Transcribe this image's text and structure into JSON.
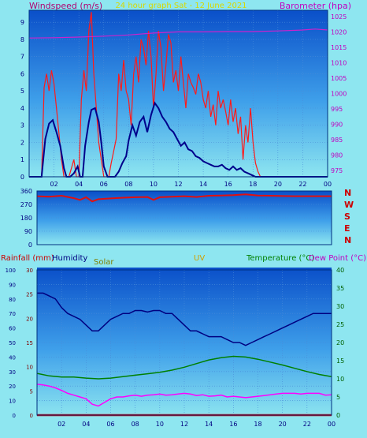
{
  "header": {
    "title": "24 hour graph Sat - 12 June 2021",
    "windspeed_label": "Windspeed (m/s)",
    "barometer_label": "Barometer (hpa)"
  },
  "bottom_header": {
    "rainfall_label": "Rainfall (mm)",
    "humidity_label": "Humidity",
    "solar_label": "Solar",
    "uv_label": "UV",
    "temperature_label": "Temperature (°C)",
    "dewpoint_label": "Dew Point (°C)"
  },
  "colors": {
    "background": "#8ee6f0",
    "gust": "#ff1a1a",
    "avg_wind": "#00008b",
    "barometer": "#cc22cc",
    "direction": "#e01010",
    "humidity": "#000080",
    "temperature": "#008000",
    "dewpoint": "#ff00ff",
    "solar": "#ffd700",
    "rain": "#cc0000"
  },
  "chart_data": [
    {
      "type": "line",
      "name": "wind-barometer",
      "x_ticks": [
        "02",
        "04",
        "06",
        "08",
        "10",
        "12",
        "14",
        "16",
        "18",
        "20",
        "22",
        "00"
      ],
      "y_left_ticks": [
        0,
        1,
        2,
        3,
        4,
        5,
        6,
        7,
        8,
        9
      ],
      "y_left_lim": [
        0,
        9.7
      ],
      "y_right_ticks": [
        975,
        980,
        985,
        990,
        995,
        1000,
        1005,
        1010,
        1015,
        1020,
        1025
      ],
      "y_right_lim": [
        973,
        1027
      ],
      "x_lim": [
        0,
        24
      ],
      "grid": true,
      "series": [
        {
          "role": "gust",
          "x": [
            0,
            0.3,
            0.6,
            1,
            1.2,
            1.4,
            1.6,
            1.8,
            2.0,
            2.2,
            2.4,
            2.6,
            2.8,
            3.0,
            3.1,
            3.2,
            3.4,
            3.6,
            3.8,
            4.0,
            4.2,
            4.4,
            4.6,
            4.8,
            5.0,
            5.2,
            5.4,
            5.6,
            5.8,
            6.0,
            6.2,
            6.4,
            6.6,
            6.8,
            7.0,
            7.2,
            7.4,
            7.6,
            7.8,
            8.0,
            8.2,
            8.4,
            8.6,
            8.8,
            9.0,
            9.2,
            9.4,
            9.6,
            9.8,
            10.0,
            10.2,
            10.4,
            10.6,
            10.8,
            11.0,
            11.2,
            11.4,
            11.6,
            11.8,
            12.0,
            12.2,
            12.4,
            12.6,
            12.8,
            13.0,
            13.2,
            13.4,
            13.6,
            13.8,
            14.0,
            14.2,
            14.4,
            14.6,
            14.8,
            15.0,
            15.2,
            15.4,
            15.6,
            15.8,
            16.0,
            16.2,
            16.4,
            16.6,
            16.8,
            17.0,
            17.2,
            17.4,
            17.6,
            17.8,
            18.0,
            18.2,
            18.4,
            18.6,
            19,
            20,
            21,
            22,
            23,
            24
          ],
          "values": [
            0,
            0,
            0,
            0,
            5.2,
            6.0,
            5.0,
            6.2,
            5.4,
            4.0,
            2.5,
            1.0,
            0,
            0,
            0,
            0,
            0.5,
            1.0,
            0,
            0,
            4.5,
            6.2,
            5.0,
            8.5,
            9.6,
            6.0,
            4.0,
            2.0,
            1.0,
            0,
            0,
            0,
            0.8,
            1.5,
            2.2,
            6.0,
            5.0,
            6.8,
            5.0,
            4.5,
            3.0,
            6.0,
            7.0,
            5.5,
            8.0,
            7.5,
            6.5,
            8.5,
            7.0,
            4.0,
            6.0,
            8.5,
            7.5,
            5.0,
            6.5,
            8.3,
            7.8,
            5.5,
            6.2,
            5.0,
            7.0,
            5.5,
            4.0,
            6.0,
            5.5,
            5.2,
            4.8,
            6.0,
            5.5,
            4.5,
            4.0,
            5.0,
            3.5,
            4.2,
            3.0,
            5.0,
            4.0,
            4.5,
            3.8,
            3.0,
            4.5,
            3.2,
            4.0,
            2.5,
            3.5,
            1.0,
            3.0,
            2.0,
            4.0,
            2.0,
            0.8,
            0.3,
            0,
            0,
            0,
            0,
            0,
            0,
            0
          ]
        },
        {
          "role": "average",
          "x": [
            0,
            0.8,
            1,
            1.3,
            1.6,
            1.9,
            2.2,
            2.5,
            2.8,
            3.0,
            3.3,
            3.6,
            3.9,
            4.1,
            4.3,
            4.5,
            4.8,
            5.0,
            5.3,
            5.6,
            5.8,
            6.0,
            6.3,
            6.6,
            6.9,
            7.2,
            7.5,
            7.8,
            8.0,
            8.3,
            8.6,
            8.9,
            9.2,
            9.5,
            9.8,
            10.1,
            10.4,
            10.7,
            11.0,
            11.3,
            11.6,
            11.9,
            12.2,
            12.5,
            12.8,
            13.1,
            13.4,
            13.7,
            14.0,
            14.3,
            14.6,
            14.9,
            15.2,
            15.5,
            15.8,
            16.1,
            16.4,
            16.7,
            17.0,
            17.3,
            17.6,
            17.9,
            18.2,
            18.5,
            19,
            20,
            21,
            22,
            23,
            24
          ],
          "values": [
            0,
            0,
            0,
            2.2,
            3.1,
            3.3,
            2.6,
            1.8,
            0.5,
            0,
            0,
            0.2,
            0.6,
            0,
            0,
            1.8,
            3.2,
            3.9,
            4.0,
            3.2,
            2.0,
            0.6,
            0,
            0,
            0,
            0.3,
            0.8,
            1.2,
            2.1,
            3.0,
            2.4,
            3.2,
            3.5,
            2.6,
            3.6,
            4.3,
            4.0,
            3.5,
            3.2,
            2.8,
            2.6,
            2.2,
            1.8,
            2.0,
            1.6,
            1.5,
            1.2,
            1.1,
            0.9,
            0.8,
            0.7,
            0.6,
            0.6,
            0.7,
            0.5,
            0.4,
            0.6,
            0.4,
            0.5,
            0.3,
            0.2,
            0.1,
            0,
            0,
            0,
            0,
            0,
            0,
            0,
            0
          ]
        },
        {
          "role": "barometer",
          "axis": "right",
          "x": [
            0,
            2,
            4,
            6,
            8,
            10,
            12,
            14,
            16,
            18,
            20,
            22,
            23,
            24
          ],
          "values": [
            1018.0,
            1018.1,
            1018.3,
            1018.6,
            1019.0,
            1019.6,
            1020.0,
            1020.0,
            1020.1,
            1020.1,
            1020.3,
            1020.6,
            1020.9,
            1020.6
          ]
        }
      ]
    },
    {
      "type": "line",
      "name": "wind-direction",
      "x_lim": [
        0,
        24
      ],
      "y_ticks": [
        0,
        90,
        180,
        270,
        360
      ],
      "y_lim": [
        0,
        360
      ],
      "compass_labels": [
        "N",
        "W",
        "S",
        "E",
        "N"
      ],
      "grid": true,
      "series": [
        {
          "role": "direction",
          "x": [
            0,
            1,
            2,
            3,
            3.5,
            4,
            4.5,
            5,
            6,
            7,
            8,
            9,
            9.5,
            10,
            11,
            12,
            13,
            14,
            15,
            16,
            17,
            18,
            19,
            20,
            21,
            22,
            23,
            24
          ],
          "values": [
            325,
            322,
            328,
            312,
            300,
            318,
            290,
            305,
            310,
            315,
            318,
            320,
            300,
            318,
            322,
            325,
            320,
            328,
            330,
            332,
            338,
            330,
            328,
            326,
            325,
            325,
            325,
            325
          ]
        }
      ]
    },
    {
      "type": "line",
      "name": "temperature-humidity",
      "x_ticks": [
        "02",
        "04",
        "06",
        "08",
        "10",
        "12",
        "14",
        "16",
        "18",
        "20",
        "22",
        "00"
      ],
      "x_lim": [
        0,
        24
      ],
      "y_humidity_ticks": [
        0,
        10,
        20,
        30,
        40,
        50,
        60,
        70,
        80,
        90,
        100
      ],
      "y_rain_ticks": [
        0,
        5,
        10,
        15,
        20,
        25,
        30
      ],
      "y_right_ticks": [
        0,
        5,
        10,
        15,
        20,
        25,
        30,
        35,
        40
      ],
      "y_right_lim": [
        0,
        40
      ],
      "grid": true,
      "series": [
        {
          "role": "humidity",
          "x": [
            0,
            0.5,
            1,
            1.5,
            2,
            2.5,
            3,
            3.5,
            4,
            4.5,
            5,
            5.5,
            6,
            6.5,
            7,
            7.5,
            8,
            8.5,
            9,
            9.5,
            10,
            10.5,
            11,
            11.5,
            12,
            12.5,
            13,
            13.5,
            14,
            14.5,
            15,
            15.5,
            16,
            16.5,
            17,
            17.5,
            18,
            18.5,
            19,
            19.5,
            20,
            20.5,
            21,
            21.5,
            22,
            22.5,
            23,
            23.5,
            24
          ],
          "values": [
            84,
            84,
            82,
            80,
            74,
            70,
            68,
            66,
            62,
            58,
            58,
            62,
            66,
            68,
            70,
            70,
            72,
            72,
            71,
            72,
            72,
            70,
            70,
            66,
            62,
            58,
            58,
            56,
            54,
            54,
            54,
            52,
            50,
            50,
            48,
            50,
            52,
            54,
            56,
            58,
            60,
            62,
            64,
            66,
            68,
            70,
            70,
            70,
            70
          ]
        },
        {
          "role": "temperature",
          "x": [
            0,
            1,
            2,
            3,
            4,
            5,
            6,
            7,
            8,
            9,
            10,
            11,
            12,
            13,
            14,
            15,
            16,
            17,
            18,
            19,
            20,
            21,
            22,
            23,
            24
          ],
          "values": [
            11.5,
            10.8,
            10.5,
            10.5,
            10.2,
            10.0,
            10.2,
            10.6,
            11.0,
            11.4,
            11.8,
            12.4,
            13.2,
            14.2,
            15.2,
            15.8,
            16.2,
            16.0,
            15.4,
            14.6,
            13.8,
            12.9,
            12.0,
            11.2,
            10.6
          ]
        },
        {
          "role": "dewpoint",
          "x": [
            0,
            0.5,
            1,
            1.5,
            2,
            2.5,
            3,
            3.5,
            4,
            4.5,
            5,
            5.5,
            6,
            6.5,
            7,
            7.5,
            8,
            8.5,
            9,
            9.5,
            10,
            10.5,
            11,
            11.5,
            12,
            12.5,
            13,
            13.5,
            14,
            14.5,
            15,
            15.5,
            16,
            16.5,
            17,
            17.5,
            18,
            18.5,
            19,
            19.5,
            20,
            20.5,
            21,
            21.5,
            22,
            22.5,
            23,
            23.5,
            24
          ],
          "values": [
            8.5,
            8.3,
            8.0,
            7.5,
            6.8,
            6.0,
            5.5,
            5.0,
            4.5,
            3.0,
            2.5,
            3.5,
            4.5,
            5.0,
            5.0,
            5.3,
            5.5,
            5.2,
            5.5,
            5.6,
            5.8,
            5.5,
            5.6,
            5.8,
            6.0,
            5.8,
            5.4,
            5.6,
            5.2,
            5.3,
            5.5,
            5.0,
            5.2,
            5.0,
            4.8,
            5.0,
            5.2,
            5.4,
            5.6,
            5.8,
            6.0,
            6.0,
            6.0,
            5.8,
            6.0,
            6.0,
            6.0,
            5.5,
            5.6
          ]
        },
        {
          "role": "solar",
          "x": [
            0,
            24
          ],
          "values": [
            0,
            0
          ]
        },
        {
          "role": "uv",
          "x": [
            0,
            24
          ],
          "values": [
            0,
            0
          ]
        },
        {
          "role": "rainfall",
          "x": [
            0,
            24
          ],
          "values": [
            0,
            0
          ]
        }
      ]
    }
  ]
}
